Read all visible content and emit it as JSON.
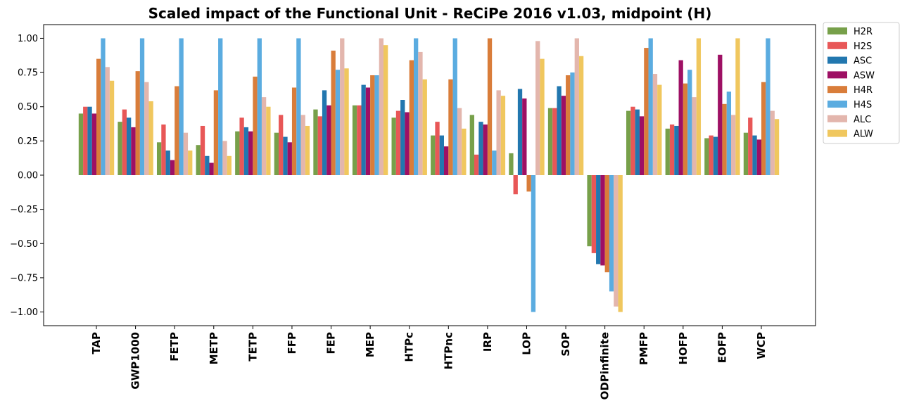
{
  "chart_data": {
    "type": "bar",
    "title": "Scaled impact of the Functional Unit - ReCiPe 2016 v1.03, midpoint (H)",
    "xlabel": "",
    "ylabel": "",
    "ylim": [
      -1.1,
      1.1
    ],
    "yticks": [
      -1.0,
      -0.75,
      -0.5,
      -0.25,
      0.0,
      0.25,
      0.5,
      0.75,
      1.0
    ],
    "ytick_labels": [
      "−1.00",
      "−0.75",
      "−0.50",
      "−0.25",
      "0.00",
      "0.25",
      "0.50",
      "0.75",
      "1.00"
    ],
    "grid": false,
    "legend_position": "outside-top-right",
    "categories": [
      "TAP",
      "GWP1000",
      "FETP",
      "METP",
      "TETP",
      "FFP",
      "FEP",
      "MEP",
      "HTPc",
      "HTPnc",
      "IRP",
      "LOP",
      "SOP",
      "ODPinfinite",
      "PMFP",
      "HOFP",
      "EOFP",
      "WCP"
    ],
    "series": [
      {
        "name": "H2R",
        "color": "#77a04a",
        "values": [
          0.45,
          0.39,
          0.24,
          0.22,
          0.32,
          0.31,
          0.48,
          0.51,
          0.42,
          0.29,
          0.44,
          0.16,
          0.49,
          -0.52,
          0.47,
          0.34,
          0.27,
          0.31
        ]
      },
      {
        "name": "H2S",
        "color": "#e85757",
        "values": [
          0.5,
          0.48,
          0.37,
          0.36,
          0.42,
          0.44,
          0.43,
          0.51,
          0.47,
          0.39,
          0.15,
          -0.14,
          0.49,
          -0.57,
          0.5,
          0.37,
          0.29,
          0.42
        ]
      },
      {
        "name": "ASC",
        "color": "#2277af",
        "values": [
          0.5,
          0.42,
          0.18,
          0.14,
          0.35,
          0.28,
          0.62,
          0.66,
          0.55,
          0.29,
          0.39,
          0.63,
          0.65,
          -0.65,
          0.48,
          0.36,
          0.28,
          0.29
        ]
      },
      {
        "name": "ASW",
        "color": "#9e1064",
        "values": [
          0.45,
          0.35,
          0.11,
          0.09,
          0.32,
          0.24,
          0.51,
          0.64,
          0.46,
          0.21,
          0.37,
          0.56,
          0.58,
          -0.66,
          0.43,
          0.84,
          0.88,
          0.26
        ]
      },
      {
        "name": "H4R",
        "color": "#d97d3a",
        "values": [
          0.85,
          0.76,
          0.65,
          0.62,
          0.72,
          0.64,
          0.91,
          0.73,
          0.84,
          0.7,
          1.0,
          -0.12,
          0.73,
          -0.71,
          0.93,
          0.67,
          0.52,
          0.68
        ]
      },
      {
        "name": "H4S",
        "color": "#5bace0",
        "values": [
          1.0,
          1.0,
          1.0,
          1.0,
          1.0,
          1.0,
          0.77,
          0.73,
          1.0,
          1.0,
          0.18,
          -1.0,
          0.75,
          -0.85,
          1.0,
          0.77,
          0.61,
          1.0
        ]
      },
      {
        "name": "ALC",
        "color": "#e3b6ad",
        "values": [
          0.79,
          0.68,
          0.31,
          0.25,
          0.57,
          0.44,
          1.0,
          1.0,
          0.9,
          0.49,
          0.62,
          0.98,
          1.0,
          -0.96,
          0.74,
          0.57,
          0.44,
          0.47
        ]
      },
      {
        "name": "ALW",
        "color": "#f0c75e",
        "values": [
          0.69,
          0.54,
          0.18,
          0.14,
          0.5,
          0.36,
          0.78,
          0.95,
          0.7,
          0.34,
          0.58,
          0.85,
          0.87,
          -1.0,
          0.66,
          1.0,
          1.0,
          0.41
        ]
      }
    ]
  }
}
